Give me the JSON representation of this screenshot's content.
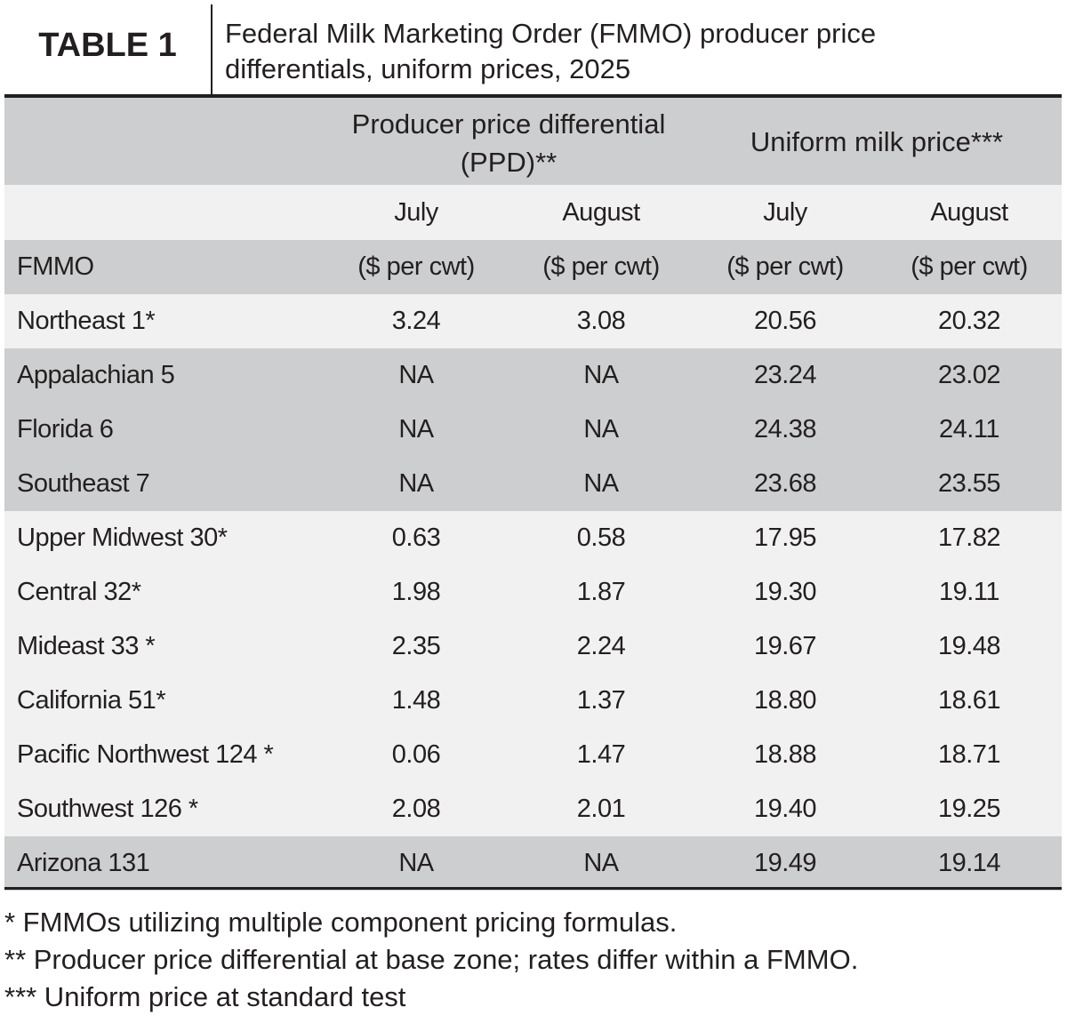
{
  "header": {
    "label": "TABLE 1",
    "title": "Federal Milk Marketing Order (FMMO) producer price differentials, uniform prices, 2025"
  },
  "table": {
    "groups": [
      "Producer price differential (PPD)**",
      "Uniform milk price***"
    ],
    "months": [
      "July",
      "August",
      "July",
      "August"
    ],
    "units_row": [
      "FMMO",
      "($ per cwt)",
      "($ per cwt)",
      "($ per cwt)",
      "($ per cwt)"
    ],
    "rows": [
      [
        "Northeast 1*",
        "3.24",
        "3.08",
        "20.56",
        "20.32"
      ],
      [
        "Appalachian 5",
        "NA",
        "NA",
        "23.24",
        "23.02"
      ],
      [
        "Florida 6",
        "NA",
        "NA",
        "24.38",
        "24.11"
      ],
      [
        "Southeast 7",
        "NA",
        "NA",
        "23.68",
        "23.55"
      ],
      [
        "Upper Midwest 30*",
        "0.63",
        "0.58",
        "17.95",
        "17.82"
      ],
      [
        "Central 32*",
        "1.98",
        "1.87",
        "19.30",
        "19.11"
      ],
      [
        "Mideast 33 *",
        "2.35",
        "2.24",
        "19.67",
        "19.48"
      ],
      [
        "California 51*",
        "1.48",
        "1.37",
        "18.80",
        "18.61"
      ],
      [
        "Pacific Northwest 124 *",
        "0.06",
        "1.47",
        "18.88",
        "18.71"
      ],
      [
        "Southwest 126 *",
        "2.08",
        "2.01",
        "19.40",
        "19.25"
      ],
      [
        "Arizona 131",
        "NA",
        "NA",
        "19.49",
        "19.14"
      ]
    ]
  },
  "footnotes": [
    "* FMMOs utilizing multiple component pricing formulas.",
    "** Producer price differential at base zone; rates differ within a FMMO.",
    "*** Uniform price at standard test"
  ]
}
